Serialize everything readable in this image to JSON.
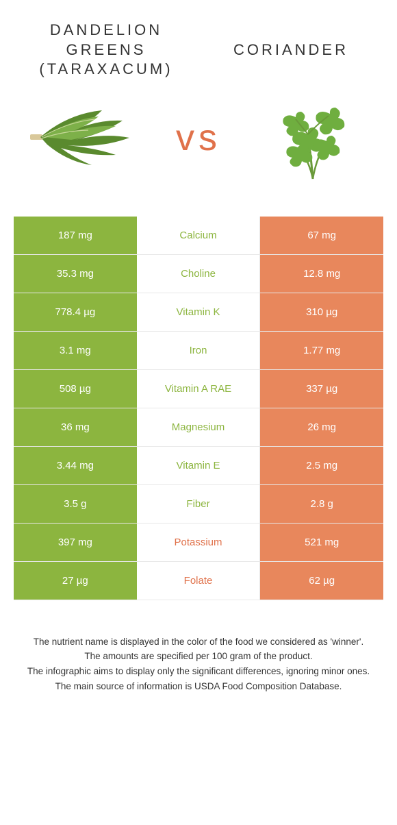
{
  "colors": {
    "green": "#8cb53f",
    "orange": "#e8875c",
    "green_text": "#8cb53f",
    "orange_text": "#e0714a",
    "vs": "#e0714a"
  },
  "left": {
    "title_line1": "Dandelion",
    "title_line2": "greens",
    "title_line3": "(taraxacum)"
  },
  "right": {
    "title": "Coriander"
  },
  "vs": "vs",
  "rows": [
    {
      "left": "187 mg",
      "name": "Calcium",
      "right": "67 mg",
      "winner": "left"
    },
    {
      "left": "35.3 mg",
      "name": "Choline",
      "right": "12.8 mg",
      "winner": "left"
    },
    {
      "left": "778.4 µg",
      "name": "Vitamin K",
      "right": "310 µg",
      "winner": "left"
    },
    {
      "left": "3.1 mg",
      "name": "Iron",
      "right": "1.77 mg",
      "winner": "left"
    },
    {
      "left": "508 µg",
      "name": "Vitamin A RAE",
      "right": "337 µg",
      "winner": "left"
    },
    {
      "left": "36 mg",
      "name": "Magnesium",
      "right": "26 mg",
      "winner": "left"
    },
    {
      "left": "3.44 mg",
      "name": "Vitamin E",
      "right": "2.5 mg",
      "winner": "left"
    },
    {
      "left": "3.5 g",
      "name": "Fiber",
      "right": "2.8 g",
      "winner": "left"
    },
    {
      "left": "397 mg",
      "name": "Potassium",
      "right": "521 mg",
      "winner": "right"
    },
    {
      "left": "27 µg",
      "name": "Folate",
      "right": "62 µg",
      "winner": "right"
    }
  ],
  "footer": {
    "l1": "The nutrient name is displayed in the color of the food we considered as 'winner'.",
    "l2": "The amounts are specified per 100 gram of the product.",
    "l3": "The infographic aims to display only the significant differences, ignoring minor ones.",
    "l4": "The main source of information is USDA Food Composition Database."
  }
}
